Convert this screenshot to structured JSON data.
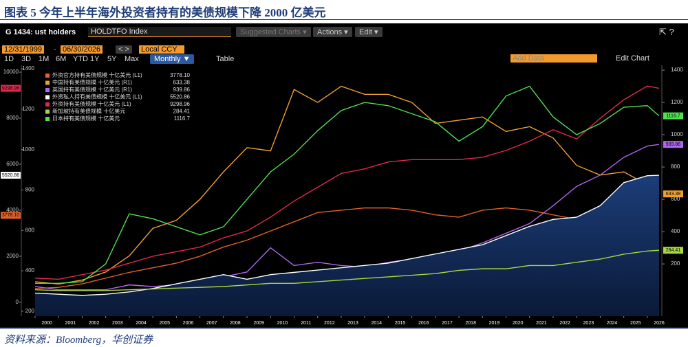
{
  "document": {
    "title": "图表 5 今年上半年海外投资者持有的美债规模下降 2000 亿美元",
    "source": "资料来源：Bloomberg，华创证券"
  },
  "toolbar": {
    "screen": "G 1434: ust holders",
    "ticker": "HOLDTFO Index",
    "suggested": "Suggested Charts ▾",
    "actions": "Actions ▾",
    "edit": "Edit ▾",
    "start_date": "12/31/1999",
    "end_date": "06/30/2026",
    "currency": "Local CCY",
    "periods": [
      "1D",
      "3D",
      "1M",
      "6M",
      "YTD",
      "1Y",
      "5Y",
      "Max"
    ],
    "frequency": "Monthly ▼",
    "table": "Table",
    "add_data": "Add Data",
    "edit_chart": "Edit Chart"
  },
  "chart_data": {
    "type": "line",
    "x": [
      2000,
      2001,
      2002,
      2003,
      2004,
      2005,
      2006,
      2007,
      2008,
      2009,
      2010,
      2011,
      2012,
      2013,
      2014,
      2015,
      2016,
      2017,
      2018,
      2019,
      2020,
      2021,
      2022,
      2023,
      2024,
      2025,
      2026,
      2026.5
    ],
    "xlim": [
      2000,
      2026.5
    ],
    "xticks": [
      {
        "value": 2000,
        "label": "2000"
      },
      {
        "value": 2001,
        "label": "2001"
      },
      {
        "value": 2002,
        "label": "2002"
      },
      {
        "value": 2003,
        "label": "2003"
      },
      {
        "value": 2004,
        "label": "2004"
      },
      {
        "value": 2005,
        "label": "2005"
      },
      {
        "value": 2006,
        "label": "2006"
      },
      {
        "value": 2007,
        "label": "2007"
      },
      {
        "value": 2008,
        "label": "2008"
      },
      {
        "value": 2009,
        "label": "2009"
      },
      {
        "value": 2010,
        "label": "2010"
      },
      {
        "value": 2011,
        "label": "2011"
      },
      {
        "value": 2012,
        "label": "2012"
      },
      {
        "value": 2013,
        "label": "2013"
      },
      {
        "value": 2014,
        "label": "2014"
      },
      {
        "value": 2015,
        "label": "2015"
      },
      {
        "value": 2016,
        "label": "2016"
      },
      {
        "value": 2017,
        "label": "2017"
      },
      {
        "value": 2018,
        "label": "2018"
      },
      {
        "value": 2019,
        "label": "2019"
      },
      {
        "value": 2020,
        "label": "2020"
      },
      {
        "value": 2021,
        "label": "2021"
      },
      {
        "value": 2022,
        "label": "2022"
      },
      {
        "value": 2023,
        "label": "2023"
      },
      {
        "value": 2024,
        "label": "2024"
      },
      {
        "value": 2025,
        "label": "2025"
      },
      {
        "value": 2026,
        "label": "2026"
      }
    ],
    "ylim": [
      -600,
      10300
    ],
    "yticks": [
      0,
      2000,
      4000,
      6000,
      8000,
      10000
    ],
    "y2lim": [
      -123,
      1430
    ],
    "y2ticks": [
      200,
      400,
      600,
      800,
      1000,
      1200,
      1400
    ],
    "y3lim": [
      176,
      1417
    ],
    "y3ticks": [
      200,
      400,
      600,
      800,
      1000,
      1200,
      1400
    ],
    "area_series": 3,
    "series": [
      {
        "name": "外资官方持有美债规模 十亿美元 (L1)",
        "color": "#e2622a",
        "axis": "y",
        "value_label": "3778.10",
        "values": [
          600,
          650,
          800,
          1050,
          1300,
          1500,
          1700,
          2000,
          2400,
          2700,
          3100,
          3500,
          3900,
          4000,
          4100,
          4100,
          4000,
          3800,
          3700,
          4000,
          4100,
          4000,
          3800,
          3600,
          3800,
          3900,
          3800,
          3778.1
        ]
      },
      {
        "name": "中国持有美债规模 十亿美元 (R1)",
        "color": "#f0a030",
        "axis": "y2",
        "value_label": "633.38",
        "values": [
          90,
          75,
          100,
          150,
          250,
          420,
          470,
          600,
          770,
          920,
          900,
          1280,
          1200,
          1300,
          1250,
          1250,
          1200,
          1070,
          1090,
          1110,
          1020,
          1050,
          980,
          810,
          750,
          770,
          690,
          633.38
        ]
      },
      {
        "name": "英国持有美债规模 十亿美元 (R1)",
        "color": "#b066f0",
        "axis": "y2",
        "value_label": "939.86",
        "values": [
          60,
          40,
          40,
          40,
          70,
          60,
          70,
          100,
          120,
          150,
          300,
          190,
          210,
          190,
          180,
          210,
          230,
          260,
          280,
          330,
          390,
          450,
          560,
          680,
          750,
          860,
          930,
          939.86
        ]
      },
      {
        "name": "外资私人持有美债规模 十亿美元 (L1)",
        "color": "#ffffff",
        "axis": "y",
        "value_label": "5520.86",
        "values": [
          400,
          350,
          300,
          350,
          450,
          600,
          800,
          1000,
          1200,
          1000,
          1200,
          1300,
          1400,
          1500,
          1600,
          1700,
          1900,
          2100,
          2300,
          2500,
          2900,
          3300,
          3600,
          3700,
          4200,
          5200,
          5500,
          5520.86
        ]
      },
      {
        "name": "外资持有美债规模 十亿美元 (L1)",
        "color": "#e0284e",
        "axis": "y",
        "value_label": "9298.96",
        "values": [
          1050,
          1000,
          1200,
          1400,
          1700,
          2000,
          2200,
          2400,
          2800,
          3100,
          3700,
          4400,
          5000,
          5600,
          5800,
          6100,
          6200,
          6200,
          6200,
          6300,
          6600,
          7000,
          7500,
          7100,
          8000,
          8800,
          9400,
          9298.96
        ]
      },
      {
        "name": "新加坡持有美债规模 十亿美元",
        "color": "#a8d840",
        "axis": "y2",
        "value_label": "284.41",
        "values": [
          40,
          35,
          35,
          35,
          40,
          45,
          50,
          55,
          60,
          70,
          80,
          80,
          90,
          100,
          110,
          120,
          130,
          140,
          160,
          170,
          170,
          190,
          190,
          210,
          230,
          260,
          280,
          284.41
        ]
      },
      {
        "name": "日本持有美债规模 十亿美元",
        "color": "#50e050",
        "axis": "y2",
        "value_label": "1116.7",
        "values": [
          80,
          80,
          90,
          200,
          510,
          480,
          430,
          380,
          430,
          600,
          770,
          880,
          1025,
          1150,
          1200,
          1180,
          1130,
          1080,
          960,
          1050,
          1240,
          1300,
          1110,
          1000,
          1070,
          1170,
          1180,
          1116.7
        ]
      }
    ]
  }
}
